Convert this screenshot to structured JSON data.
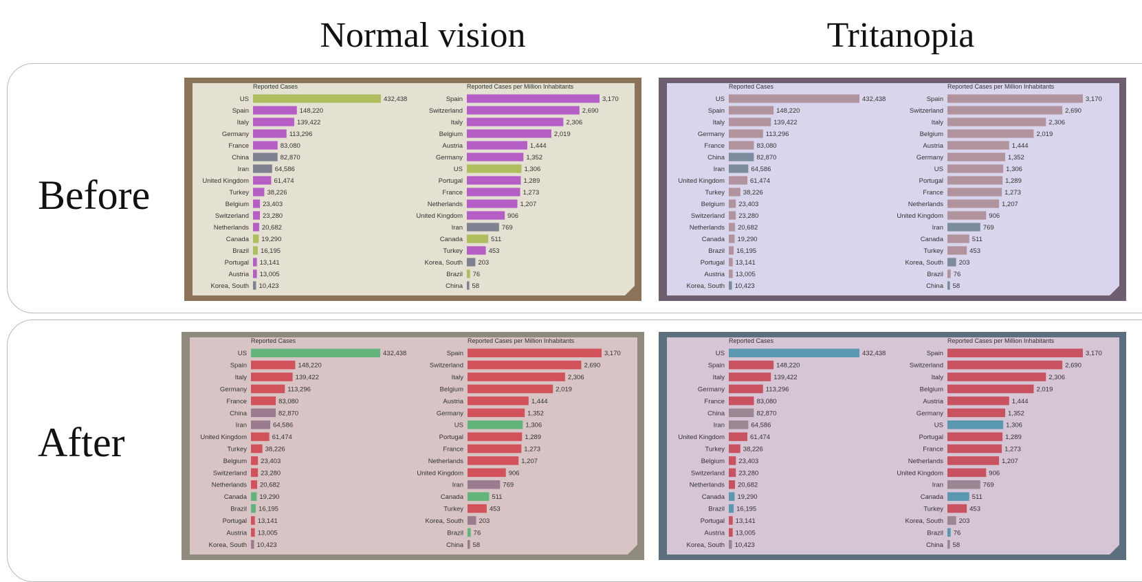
{
  "columns": {
    "normal": "Normal vision",
    "tritanopia": "Tritanopia"
  },
  "rows": {
    "before": "Before",
    "after": "After"
  },
  "chart_data": [
    {
      "type": "bar",
      "title": "Reported Cases",
      "categories": [
        "US",
        "Spain",
        "Italy",
        "Germany",
        "France",
        "China",
        "Iran",
        "United Kingdom",
        "Turkey",
        "Belgium",
        "Switzerland",
        "Netherlands",
        "Canada",
        "Brazil",
        "Portugal",
        "Austria",
        "Korea, South"
      ],
      "values": [
        432438,
        148220,
        139422,
        113296,
        83080,
        82870,
        64586,
        61474,
        38226,
        23403,
        23280,
        20682,
        19290,
        16195,
        13141,
        13005,
        10423
      ],
      "labels": [
        "432,438",
        "148,220",
        "139,422",
        "113,296",
        "83,080",
        "82,870",
        "64,586",
        "61,474",
        "38,226",
        "23,403",
        "23,280",
        "20,682",
        "19,290",
        "16,195",
        "13,141",
        "13,005",
        "10,423"
      ],
      "groups": [
        "americas",
        "europe",
        "europe",
        "europe",
        "europe",
        "asia",
        "asia",
        "europe",
        "europe",
        "europe",
        "europe",
        "europe",
        "americas",
        "americas",
        "europe",
        "europe",
        "asia"
      ]
    },
    {
      "type": "bar",
      "title": "Reported Cases per Million Inhabitants",
      "categories": [
        "Spain",
        "Switzerland",
        "Italy",
        "Belgium",
        "Austria",
        "Germany",
        "US",
        "Portugal",
        "France",
        "Netherlands",
        "United Kingdom",
        "Iran",
        "Canada",
        "Turkey",
        "Korea, South",
        "Brazil",
        "China"
      ],
      "values": [
        3170,
        2690,
        2306,
        2019,
        1444,
        1352,
        1306,
        1289,
        1273,
        1207,
        906,
        769,
        511,
        453,
        203,
        76,
        58
      ],
      "labels": [
        "3,170",
        "2,690",
        "2,306",
        "2,019",
        "1,444",
        "1,352",
        "1,306",
        "1,289",
        "1,273",
        "1,207",
        "906",
        "769",
        "511",
        "453",
        "203",
        "76",
        "58"
      ],
      "groups": [
        "europe",
        "europe",
        "europe",
        "europe",
        "europe",
        "europe",
        "americas",
        "europe",
        "europe",
        "europe",
        "europe",
        "asia",
        "americas",
        "europe",
        "asia",
        "americas",
        "asia"
      ]
    }
  ],
  "palettes": {
    "before_normal": {
      "bg": "#e4e0d2",
      "frame": "#8a7358",
      "europe": "#b55ec6",
      "asia": "#7f8190",
      "americas": "#aebd5e"
    },
    "before_tritanopia": {
      "bg": "#d9d5ec",
      "frame": "#6e5e70",
      "europe": "#b0939d",
      "asia": "#7c8c9f",
      "americas": "#b0939d"
    },
    "after_normal": {
      "bg": "#d8c4c5",
      "frame": "#8f8a7e",
      "europe": "#d2525c",
      "asia": "#9b7b8e",
      "americas": "#62b57a"
    },
    "after_tritanopia": {
      "bg": "#d6c5d4",
      "frame": "#5d6e7e",
      "europe": "#c95260",
      "asia": "#9b8791",
      "americas": "#5a98b2"
    }
  }
}
